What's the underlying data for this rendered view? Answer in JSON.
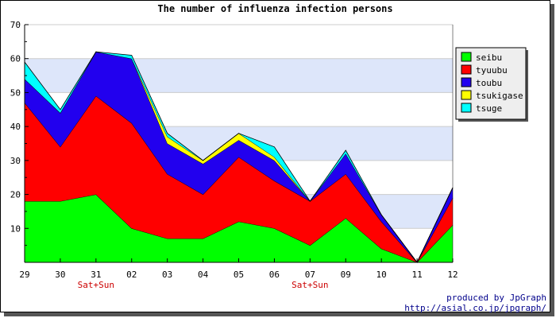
{
  "chart_data": {
    "type": "area",
    "stacked": true,
    "title": "The number of influenza infection persons",
    "categories": [
      "29",
      "30",
      "31",
      "02",
      "03",
      "04",
      "05",
      "06",
      "07",
      "09",
      "10",
      "11",
      "12"
    ],
    "category_notes": {
      "31": "Sat+Sun",
      "07": "Sat+Sun"
    },
    "ylim": [
      0,
      70
    ],
    "yticks": [
      10,
      20,
      30,
      40,
      50,
      60,
      70
    ],
    "grid": true,
    "legend_position": "top-right",
    "series": [
      {
        "name": "seibu",
        "color": "#00ff00",
        "values": [
          18,
          18,
          20,
          10,
          7,
          7,
          12,
          10,
          5,
          13,
          4,
          0,
          11
        ]
      },
      {
        "name": "tyuubu",
        "color": "#ff0000",
        "values": [
          29,
          16,
          29,
          31,
          19,
          13,
          19,
          14,
          13,
          13,
          8,
          0,
          8
        ]
      },
      {
        "name": "toubu",
        "color": "#2200ee",
        "values": [
          7,
          10,
          13,
          19,
          9,
          9,
          5,
          6,
          0,
          6,
          2,
          0,
          3
        ]
      },
      {
        "name": "tsukigase",
        "color": "#ffff00",
        "values": [
          0,
          0,
          0,
          0,
          2,
          1,
          2,
          1,
          0,
          0,
          0,
          0,
          0
        ]
      },
      {
        "name": "tsuge",
        "color": "#00ffff",
        "values": [
          5,
          1,
          0,
          1,
          1,
          0,
          0,
          3,
          0,
          1,
          0,
          0,
          0
        ]
      }
    ]
  },
  "footer": {
    "line1": "produced by JpGraph",
    "line2": "http://asial.co.jp/jpgraph/"
  }
}
